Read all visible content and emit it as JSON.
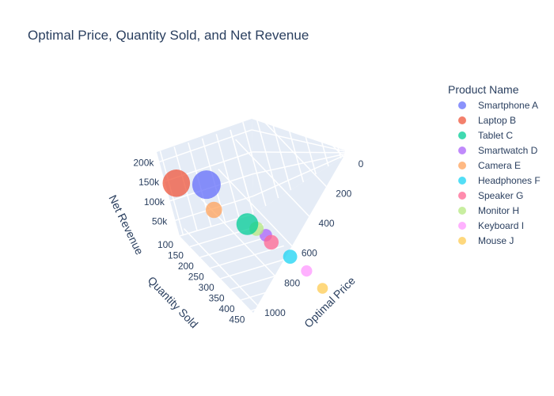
{
  "chart_data": {
    "type": "scatter3d",
    "title": "Optimal Price, Quantity Sold, and Net Revenue",
    "axes": {
      "x": {
        "label": "Optimal Price",
        "ticks": [
          0,
          200,
          400,
          600,
          800,
          1000
        ],
        "range": [
          0,
          1050
        ]
      },
      "y": {
        "label": "Quantity Sold",
        "ticks": [
          100,
          150,
          200,
          250,
          300,
          350,
          400,
          450
        ],
        "range": [
          100,
          460
        ]
      },
      "z": {
        "label": "Net Revenue",
        "ticks": [
          "50k",
          "100k",
          "150k",
          "200k"
        ],
        "tick_values": [
          50000,
          100000,
          150000,
          200000
        ],
        "range": [
          10000,
          225000
        ]
      }
    },
    "legend": {
      "title": "Product Name",
      "placement": "right"
    },
    "series": [
      {
        "name": "Smartphone A",
        "color": "#636efa",
        "x": 800,
        "y": 250,
        "z": 210000,
        "size": 1.0
      },
      {
        "name": "Laptop B",
        "color": "#EF553B",
        "x": 1000,
        "y": 150,
        "z": 170000,
        "size": 0.95
      },
      {
        "name": "Tablet C",
        "color": "#00cc96",
        "x": 500,
        "y": 300,
        "z": 120000,
        "size": 0.7
      },
      {
        "name": "Smartwatch D",
        "color": "#ab63fa",
        "x": 200,
        "y": 250,
        "z": 48000,
        "size": 0.28
      },
      {
        "name": "Camera E",
        "color": "#FFA15A",
        "x": 600,
        "y": 150,
        "z": 80000,
        "size": 0.45
      },
      {
        "name": "Headphones F",
        "color": "#19d3f3",
        "x": 150,
        "y": 350,
        "z": 45000,
        "size": 0.35
      },
      {
        "name": "Speaker G",
        "color": "#FF6692",
        "x": 250,
        "y": 300,
        "z": 60000,
        "size": 0.38
      },
      {
        "name": "Monitor H",
        "color": "#B6E880",
        "x": 300,
        "y": 250,
        "z": 70000,
        "size": 0.36
      },
      {
        "name": "Keyboard I",
        "color": "#FF97FF",
        "x": 80,
        "y": 400,
        "z": 32000,
        "size": 0.22
      },
      {
        "name": "Mouse J",
        "color": "#FECB52",
        "x": 30,
        "y": 450,
        "z": 12000,
        "size": 0.2
      }
    ]
  }
}
